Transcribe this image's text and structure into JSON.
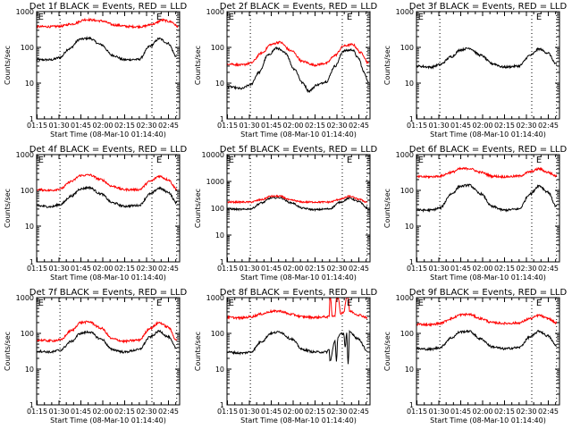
{
  "figure": {
    "layout": "3x3 grid of detector light curves"
  },
  "chart_data": [
    {
      "type": "line",
      "title": "Det 1f BLACK = Events, RED = LLD",
      "xlabel": "Start Time (08-Mar-10 01:14:40)",
      "ylabel": "Counts/sec",
      "yscale": "log",
      "ylim": [
        1,
        1000
      ],
      "y_ticks": [
        "1",
        "10",
        "100",
        "1000"
      ],
      "x_ticks": [
        "01:15",
        "01:30",
        "01:45",
        "02:00",
        "02:15",
        "02:30",
        "02:45"
      ],
      "xlim_min": [
        0,
        98
      ],
      "vlines_min": [
        16,
        79,
        96
      ],
      "markers": [
        {
          "label": "E",
          "x_min": 1
        },
        {
          "label": "E",
          "x_min": 82
        }
      ],
      "series": [
        {
          "name": "Events",
          "color": "#000000",
          "x_min": [
            0,
            10,
            16,
            22,
            30,
            36,
            44,
            52,
            60,
            70,
            78,
            84,
            90,
            96
          ],
          "values": [
            45,
            45,
            52,
            90,
            170,
            180,
            120,
            60,
            45,
            46,
            110,
            175,
            130,
            55
          ]
        },
        {
          "name": "LLD",
          "color": "#ff0000",
          "x_min": [
            0,
            10,
            16,
            24,
            34,
            44,
            54,
            64,
            72,
            80,
            86,
            92,
            97
          ],
          "values": [
            380,
            380,
            390,
            450,
            600,
            550,
            420,
            380,
            380,
            450,
            580,
            520,
            380
          ]
        }
      ]
    },
    {
      "type": "line",
      "title": "Det 2f BLACK = Events, RED = LLD",
      "xlabel": "Start Time (08-Mar-10 01:14:40)",
      "ylabel": "Counts/sec",
      "yscale": "log",
      "ylim": [
        1,
        1000
      ],
      "y_ticks": [
        "1",
        "10",
        "100",
        "1000"
      ],
      "x_ticks": [
        "01:15",
        "01:30",
        "01:45",
        "02:00",
        "02:15",
        "02:30",
        "02:45"
      ],
      "xlim_min": [
        0,
        98
      ],
      "vlines_min": [
        16,
        79,
        96
      ],
      "markers": [
        {
          "label": "E",
          "x_min": 1
        },
        {
          "label": "E",
          "x_min": 82
        }
      ],
      "series": [
        {
          "name": "Events",
          "color": "#000000",
          "x_min": [
            0,
            10,
            16,
            22,
            28,
            34,
            40,
            46,
            52,
            56,
            62,
            68,
            74,
            80,
            86,
            90,
            94,
            97
          ],
          "values": [
            8,
            7,
            9,
            20,
            60,
            95,
            70,
            25,
            10,
            6,
            9,
            11,
            30,
            80,
            85,
            50,
            20,
            10
          ]
        },
        {
          "name": "LLD",
          "color": "#ff0000",
          "x_min": [
            0,
            10,
            16,
            24,
            30,
            36,
            44,
            52,
            60,
            68,
            74,
            80,
            86,
            92,
            97
          ],
          "values": [
            35,
            32,
            36,
            70,
            120,
            140,
            80,
            40,
            32,
            36,
            60,
            110,
            120,
            70,
            36
          ]
        }
      ]
    },
    {
      "type": "line",
      "title": "Det 3f BLACK = Events, RED = LLD",
      "xlabel": "Start Time (08-Mar-10 01:14:40)",
      "ylabel": "Counts/sec",
      "yscale": "log",
      "ylim": [
        1,
        1000
      ],
      "y_ticks": [
        "1",
        "10",
        "100",
        "1000"
      ],
      "x_ticks": [
        "01:15",
        "01:30",
        "01:45",
        "02:00",
        "02:15",
        "02:30",
        "02:45"
      ],
      "xlim_min": [
        0,
        98
      ],
      "vlines_min": [
        16,
        79,
        96
      ],
      "markers": [
        {
          "label": "E",
          "x_min": 1
        },
        {
          "label": "E",
          "x_min": 82
        }
      ],
      "series": [
        {
          "name": "Events",
          "color": "#000000",
          "x_min": [
            0,
            10,
            16,
            24,
            30,
            36,
            44,
            52,
            60,
            70,
            78,
            84,
            90,
            96
          ],
          "values": [
            30,
            28,
            33,
            55,
            85,
            95,
            60,
            35,
            28,
            30,
            60,
            90,
            70,
            33
          ]
        }
      ]
    },
    {
      "type": "line",
      "title": "Det 4f BLACK = Events, RED = LLD",
      "xlabel": "Start Time (08-Mar-10 01:14:40)",
      "ylabel": "Counts/sec",
      "yscale": "log",
      "ylim": [
        1,
        1000
      ],
      "y_ticks": [
        "1",
        "10",
        "100",
        "1000"
      ],
      "x_ticks": [
        "01:15",
        "01:30",
        "01:45",
        "02:00",
        "02:15",
        "02:30",
        "02:45"
      ],
      "xlim_min": [
        0,
        98
      ],
      "vlines_min": [
        16,
        79,
        96
      ],
      "markers": [
        {
          "label": "E",
          "x_min": 1
        },
        {
          "label": "E",
          "x_min": 82
        }
      ],
      "series": [
        {
          "name": "Events",
          "color": "#000000",
          "x_min": [
            0,
            10,
            16,
            24,
            30,
            36,
            44,
            52,
            60,
            70,
            78,
            84,
            90,
            96
          ],
          "values": [
            37,
            35,
            40,
            70,
            110,
            120,
            80,
            45,
            36,
            38,
            80,
            115,
            90,
            45
          ]
        },
        {
          "name": "LLD",
          "color": "#ff0000",
          "x_min": [
            0,
            10,
            16,
            24,
            30,
            36,
            44,
            52,
            60,
            70,
            78,
            84,
            90,
            96
          ],
          "values": [
            105,
            100,
            110,
            180,
            260,
            270,
            200,
            130,
            105,
            105,
            180,
            250,
            200,
            110
          ]
        }
      ]
    },
    {
      "type": "line",
      "title": "Det 5f BLACK = Events, RED = LLD",
      "xlabel": "Start Time (08-Mar-10 01:14:40)",
      "ylabel": "Counts/sec",
      "yscale": "log",
      "ylim": [
        1,
        10000
      ],
      "y_ticks": [
        "1",
        "10",
        "100",
        "1000",
        "10000"
      ],
      "x_ticks": [
        "01:15",
        "01:30",
        "01:45",
        "02:00",
        "02:15",
        "02:30",
        "02:45"
      ],
      "xlim_min": [
        0,
        98
      ],
      "vlines_min": [
        16,
        79,
        96
      ],
      "markers": [
        {
          "label": "E",
          "x_min": 1
        },
        {
          "label": "E",
          "x_min": 82
        }
      ],
      "series": [
        {
          "name": "Events",
          "color": "#000000",
          "x_min": [
            0,
            10,
            16,
            24,
            30,
            36,
            44,
            52,
            60,
            70,
            78,
            84,
            90,
            96
          ],
          "values": [
            95,
            90,
            95,
            160,
            240,
            250,
            160,
            100,
            88,
            95,
            170,
            240,
            180,
            105
          ]
        },
        {
          "name": "LLD",
          "color": "#ff0000",
          "x_min": [
            0,
            10,
            16,
            24,
            30,
            36,
            44,
            52,
            60,
            70,
            78,
            84,
            90,
            96
          ],
          "values": [
            170,
            170,
            170,
            210,
            280,
            280,
            200,
            170,
            170,
            170,
            220,
            280,
            220,
            170
          ]
        }
      ]
    },
    {
      "type": "line",
      "title": "Det 6f BLACK = Events, RED = LLD",
      "xlabel": "Start Time (08-Mar-10 01:14:40)",
      "ylabel": "Counts/sec",
      "yscale": "log",
      "ylim": [
        1,
        1000
      ],
      "y_ticks": [
        "1",
        "10",
        "100",
        "1000"
      ],
      "x_ticks": [
        "01:15",
        "01:30",
        "01:45",
        "02:00",
        "02:15",
        "02:30",
        "02:45"
      ],
      "xlim_min": [
        0,
        98
      ],
      "vlines_min": [
        16,
        79,
        96
      ],
      "markers": [
        {
          "label": "E",
          "x_min": 1
        },
        {
          "label": "E",
          "x_min": 82
        }
      ],
      "series": [
        {
          "name": "Events",
          "color": "#000000",
          "x_min": [
            0,
            10,
            16,
            24,
            30,
            36,
            44,
            52,
            60,
            70,
            78,
            84,
            90,
            96
          ],
          "values": [
            28,
            28,
            32,
            80,
            130,
            140,
            80,
            35,
            28,
            30,
            80,
            135,
            90,
            35
          ]
        },
        {
          "name": "LLD",
          "color": "#ff0000",
          "x_min": [
            0,
            10,
            16,
            24,
            30,
            36,
            44,
            52,
            60,
            70,
            78,
            84,
            90,
            96
          ],
          "values": [
            240,
            240,
            250,
            320,
            400,
            410,
            320,
            250,
            240,
            250,
            330,
            400,
            320,
            250
          ]
        }
      ]
    },
    {
      "type": "line",
      "title": "Det 7f BLACK = Events, RED = LLD",
      "xlabel": "Start Time (08-Mar-10 01:14:40)",
      "ylabel": "Counts/sec",
      "yscale": "log",
      "ylim": [
        1,
        1000
      ],
      "y_ticks": [
        "1",
        "10",
        "100",
        "1000"
      ],
      "x_ticks": [
        "01:15",
        "01:30",
        "01:45",
        "02:00",
        "02:15",
        "02:30",
        "02:45"
      ],
      "xlim_min": [
        0,
        98
      ],
      "vlines_min": [
        16,
        79,
        96
      ],
      "markers": [
        {
          "label": "E",
          "x_min": 1
        },
        {
          "label": "E",
          "x_min": 82
        }
      ],
      "series": [
        {
          "name": "Events",
          "color": "#000000",
          "x_min": [
            0,
            10,
            16,
            24,
            30,
            36,
            44,
            52,
            60,
            70,
            78,
            84,
            90,
            96
          ],
          "values": [
            32,
            30,
            34,
            60,
            100,
            110,
            70,
            35,
            30,
            35,
            80,
            115,
            80,
            38
          ]
        },
        {
          "name": "LLD",
          "color": "#ff0000",
          "x_min": [
            0,
            10,
            16,
            24,
            30,
            36,
            44,
            52,
            60,
            70,
            78,
            84,
            90,
            96
          ],
          "values": [
            65,
            62,
            65,
            120,
            200,
            210,
            140,
            70,
            60,
            65,
            140,
            200,
            150,
            65
          ]
        }
      ]
    },
    {
      "type": "line",
      "title": "Det 8f BLACK = Events, RED = LLD",
      "xlabel": "Start Time (08-Mar-10 01:14:40)",
      "ylabel": "Counts/sec",
      "yscale": "log",
      "ylim": [
        1,
        1000
      ],
      "y_ticks": [
        "1",
        "10",
        "100",
        "1000"
      ],
      "x_ticks": [
        "01:15",
        "01:30",
        "01:45",
        "02:00",
        "02:15",
        "02:30",
        "02:45"
      ],
      "xlim_min": [
        0,
        98
      ],
      "vlines_min": [
        16,
        79,
        96
      ],
      "markers": [
        {
          "label": "E",
          "x_min": 1
        },
        {
          "label": "E",
          "x_min": 82
        }
      ],
      "series": [
        {
          "name": "Events",
          "color": "#000000",
          "x_min": [
            0,
            10,
            16,
            24,
            30,
            36,
            44,
            52,
            60,
            68,
            70,
            70.5,
            74,
            75,
            76,
            78,
            80,
            81,
            82,
            83,
            84,
            90,
            96
          ],
          "values": [
            30,
            28,
            30,
            60,
            100,
            110,
            70,
            35,
            30,
            30,
            35,
            17,
            60,
            17,
            80,
            95,
            100,
            40,
            100,
            13,
            110,
            70,
            33
          ]
        },
        {
          "name": "LLD",
          "color": "#ff0000",
          "x_min": [
            0,
            10,
            16,
            24,
            30,
            36,
            44,
            52,
            60,
            68,
            70,
            70.5,
            71,
            72,
            74,
            75,
            76,
            78,
            80,
            82,
            83,
            84,
            90,
            96
          ],
          "values": [
            280,
            270,
            290,
            350,
            410,
            420,
            340,
            290,
            280,
            290,
            290,
            1000,
            1000,
            300,
            320,
            1000,
            1000,
            360,
            400,
            1000,
            1000,
            420,
            330,
            280
          ]
        }
      ]
    },
    {
      "type": "line",
      "title": "Det 9f BLACK = Events, RED = LLD",
      "xlabel": "Start Time (08-Mar-10 01:14:40)",
      "ylabel": "Counts/sec",
      "yscale": "log",
      "ylim": [
        1,
        1000
      ],
      "y_ticks": [
        "1",
        "10",
        "100",
        "1000"
      ],
      "x_ticks": [
        "01:15",
        "01:30",
        "01:45",
        "02:00",
        "02:15",
        "02:30",
        "02:45"
      ],
      "xlim_min": [
        0,
        98
      ],
      "vlines_min": [
        16,
        79,
        96
      ],
      "markers": [
        {
          "label": "E",
          "x_min": 1
        },
        {
          "label": "E",
          "x_min": 82
        }
      ],
      "series": [
        {
          "name": "Events",
          "color": "#000000",
          "x_min": [
            0,
            10,
            16,
            24,
            30,
            36,
            44,
            52,
            60,
            70,
            78,
            84,
            90,
            96
          ],
          "values": [
            37,
            36,
            40,
            75,
            110,
            115,
            70,
            42,
            37,
            40,
            80,
            115,
            85,
            45
          ]
        },
        {
          "name": "LLD",
          "color": "#ff0000",
          "x_min": [
            0,
            10,
            16,
            24,
            30,
            36,
            44,
            52,
            60,
            70,
            78,
            84,
            90,
            96
          ],
          "values": [
            180,
            175,
            190,
            260,
            330,
            340,
            260,
            200,
            190,
            195,
            260,
            320,
            260,
            195
          ]
        }
      ]
    }
  ]
}
